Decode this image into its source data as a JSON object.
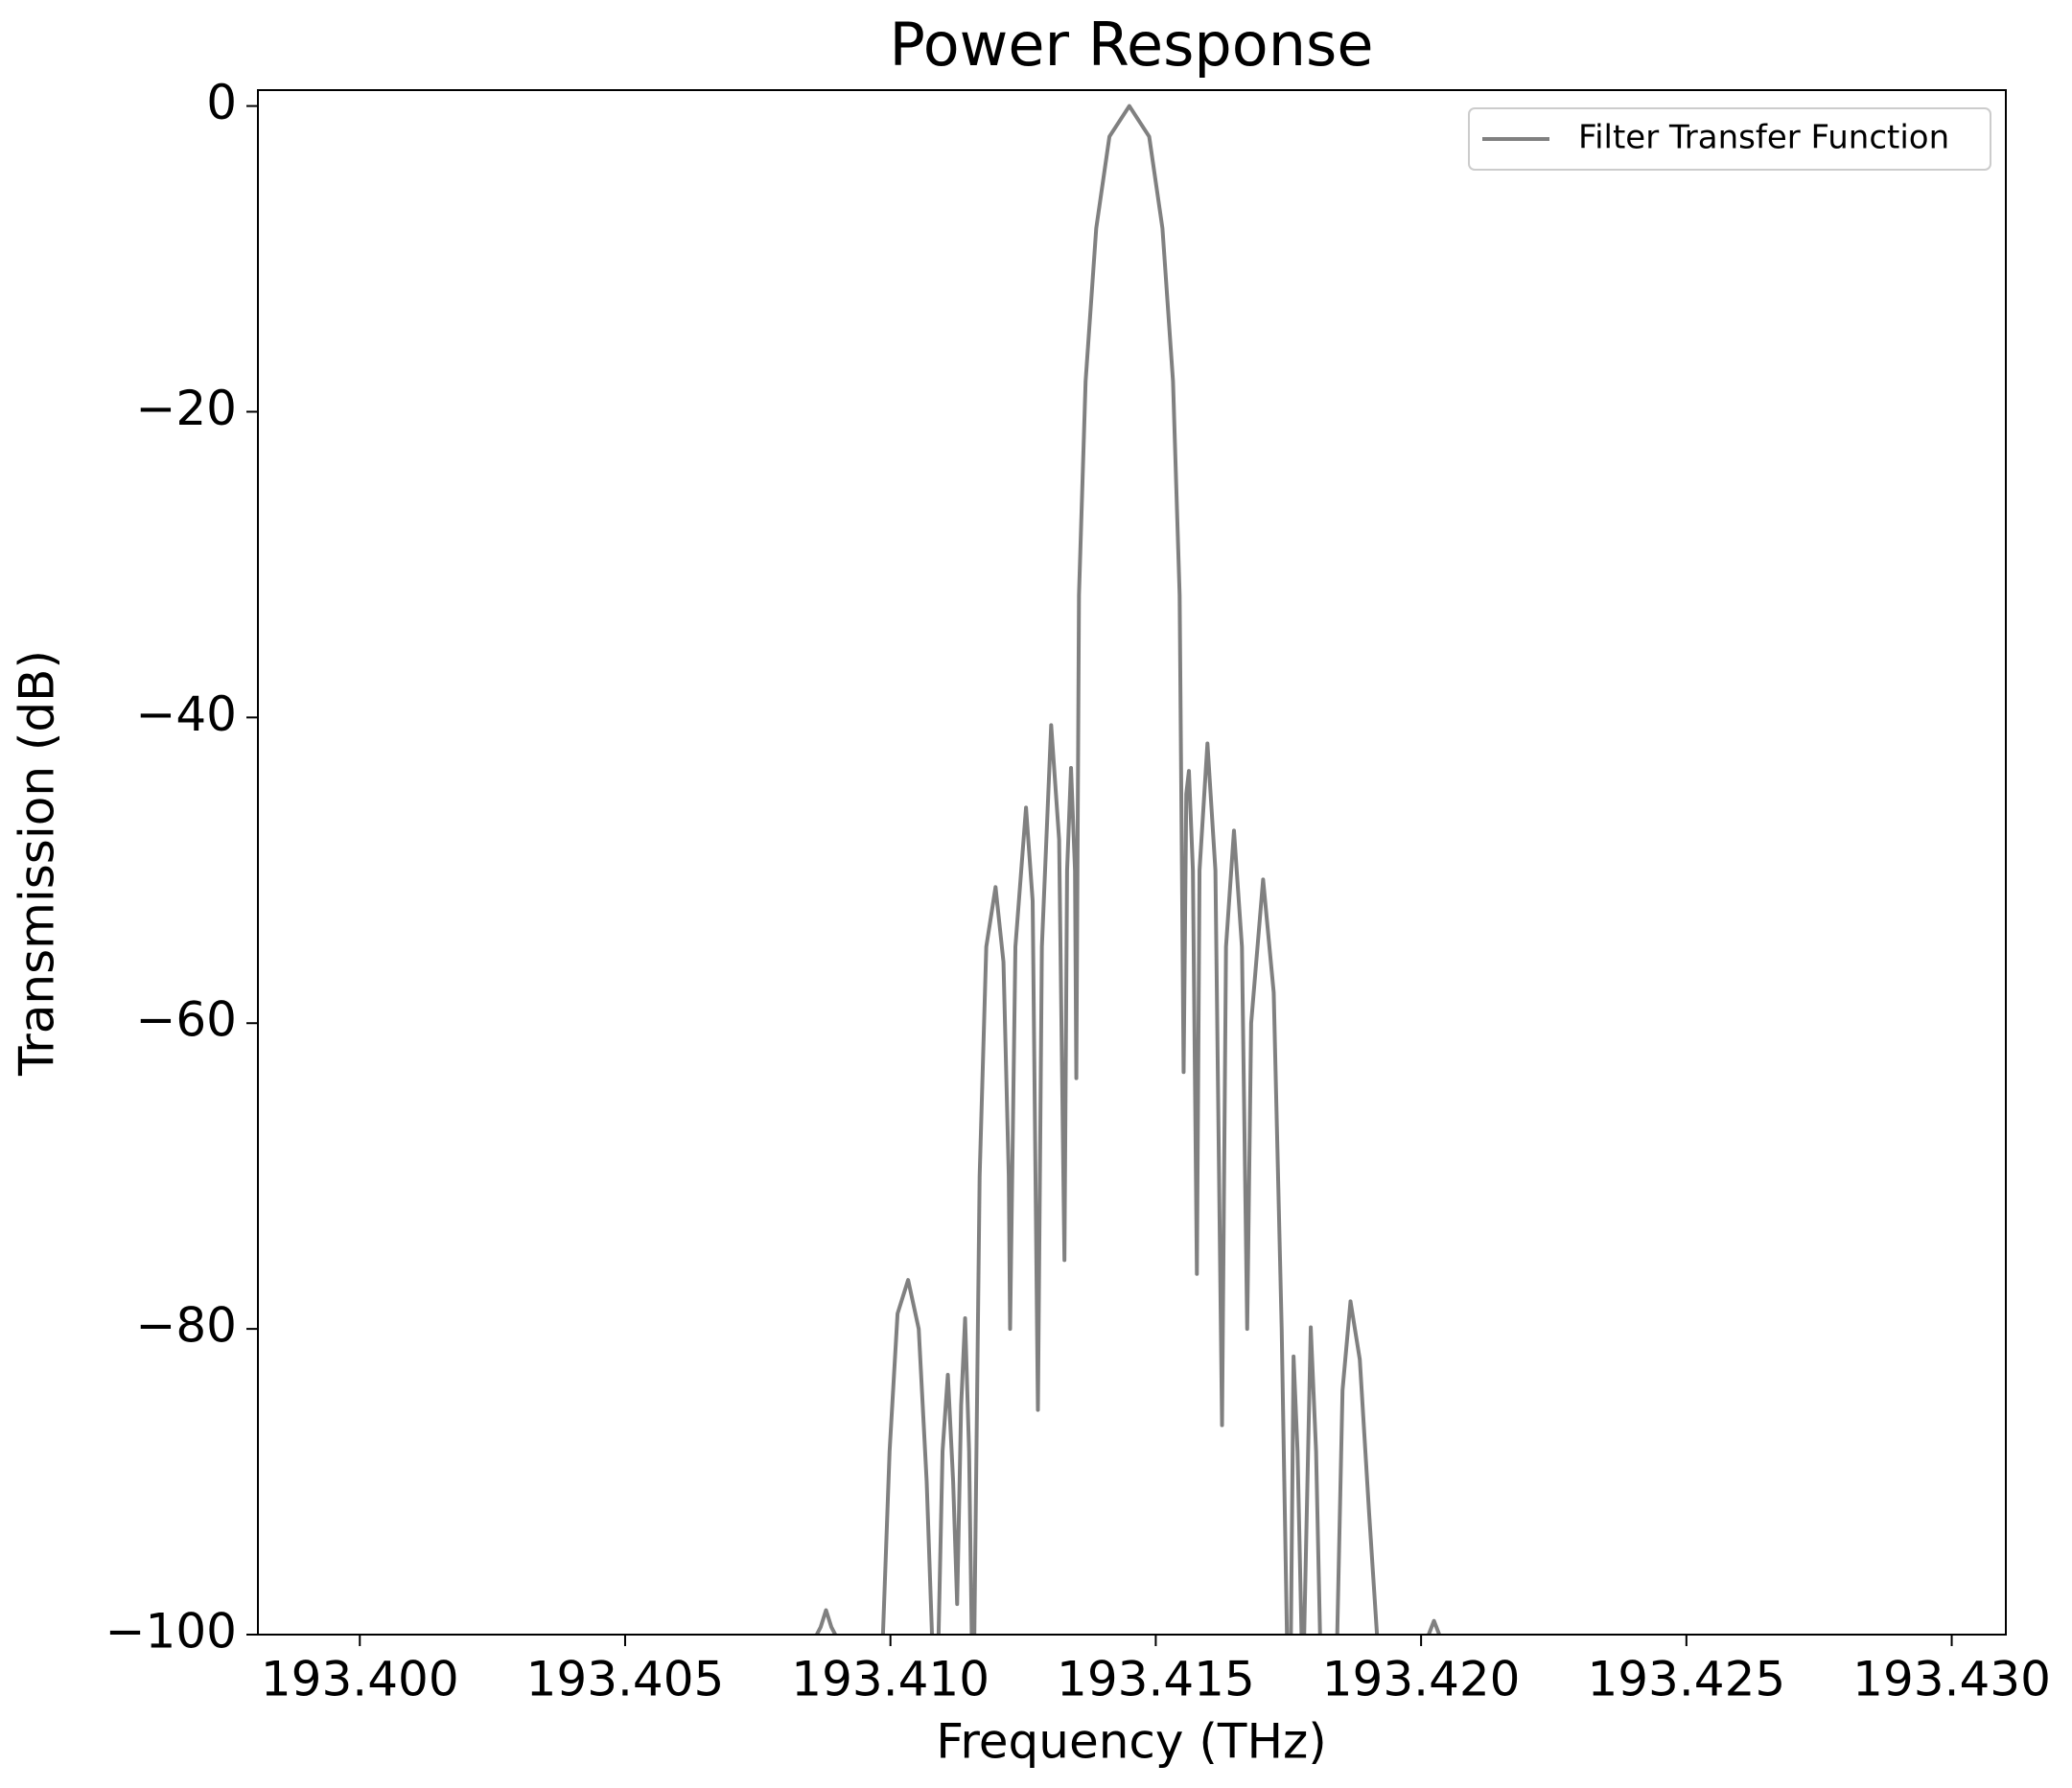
{
  "chart_data": {
    "type": "line",
    "title": "Power Response",
    "xlabel": "Frequency (THz)",
    "ylabel": "Transmission (dB)",
    "xlim": [
      193.39808,
      193.43102
    ],
    "ylim": [
      -100,
      1.04
    ],
    "xticks": [
      {
        "value": 193.4,
        "label": "193.400"
      },
      {
        "value": 193.405,
        "label": "193.405"
      },
      {
        "value": 193.41,
        "label": "193.410"
      },
      {
        "value": 193.415,
        "label": "193.415"
      },
      {
        "value": 193.42,
        "label": "193.420"
      },
      {
        "value": 193.425,
        "label": "193.425"
      },
      {
        "value": 193.43,
        "label": "193.430"
      }
    ],
    "yticks": [
      0,
      {
        "value": -20,
        "label": "−20"
      },
      {
        "value": -40,
        "label": "−40"
      },
      {
        "value": -60,
        "label": "−60"
      },
      {
        "value": -80,
        "label": "−80"
      },
      {
        "value": -100,
        "label": "−100"
      }
    ],
    "grid": false,
    "legend": "upper right",
    "series": [
      {
        "name": "Filter Transfer Function",
        "color": "#808080",
        "x": [
          193.408611,
          193.408686,
          193.408786,
          193.408886,
          193.408961,
          null,
          193.409859,
          193.409984,
          193.410134,
          193.410333,
          193.410533,
          193.410683,
          193.410783,
          null,
          193.410907,
          193.410982,
          193.411082,
          193.411182,
          193.411257,
          193.411332,
          193.411407,
          193.411482,
          193.411532,
          null,
          193.411581,
          193.411681,
          193.411806,
          193.411981,
          193.41213,
          193.41223,
          193.412255,
          193.412355,
          193.412555,
          193.41268,
          193.412779,
          193.412854,
          193.413029,
          193.413179,
          193.413279,
          193.413329,
          193.413403,
          193.413478,
          193.413503,
          193.413553,
          193.413678,
          193.413878,
          193.414127,
          193.414502,
          193.414876,
          193.415126,
          193.415325,
          193.41545,
          193.415525,
          193.415575,
          193.415625,
          193.4157,
          193.415775,
          193.415825,
          193.415974,
          193.416124,
          193.416249,
          193.416324,
          193.416474,
          193.416624,
          193.416723,
          193.416798,
          193.417023,
          193.417223,
          193.417373,
          193.417472,
          null,
          193.417547,
          193.417597,
          193.417672,
          193.417747,
          null,
          193.417797,
          193.417921,
          193.418021,
          193.418096,
          null,
          193.41842,
          193.41852,
          193.41867,
          193.418845,
          193.41902,
          193.419169,
          null,
          193.420143,
          193.420243,
          193.420343
        ],
        "values": [
          -100,
          -99.5,
          -98.4,
          -99.5,
          -100,
          null,
          -100,
          -88,
          -79,
          -76.8,
          -80,
          -90,
          -100,
          null,
          -100,
          -88,
          -83,
          -90,
          -98,
          -85,
          -79.3,
          -88,
          -100,
          null,
          -100,
          -70,
          -55,
          -51.1,
          -56,
          -70,
          -80,
          -55,
          -45.9,
          -52,
          -85.3,
          -55,
          -40.5,
          -48,
          -75.5,
          -50,
          -43.3,
          -50,
          -63.6,
          -32,
          -18,
          -8,
          -2,
          0,
          -2,
          -8,
          -18,
          -32,
          -63.2,
          -45,
          -43.5,
          -50,
          -76.4,
          -50,
          -41.7,
          -50,
          -86.3,
          -55,
          -47.4,
          -55,
          -80,
          -60,
          -50.6,
          -58,
          -80,
          -100,
          null,
          -100,
          -81.8,
          -88,
          -100,
          null,
          -100,
          -79.9,
          -88,
          -100,
          null,
          -100,
          -84,
          -78.2,
          -82,
          -92,
          -100,
          null,
          -100,
          -99.1,
          -100
        ]
      }
    ]
  }
}
